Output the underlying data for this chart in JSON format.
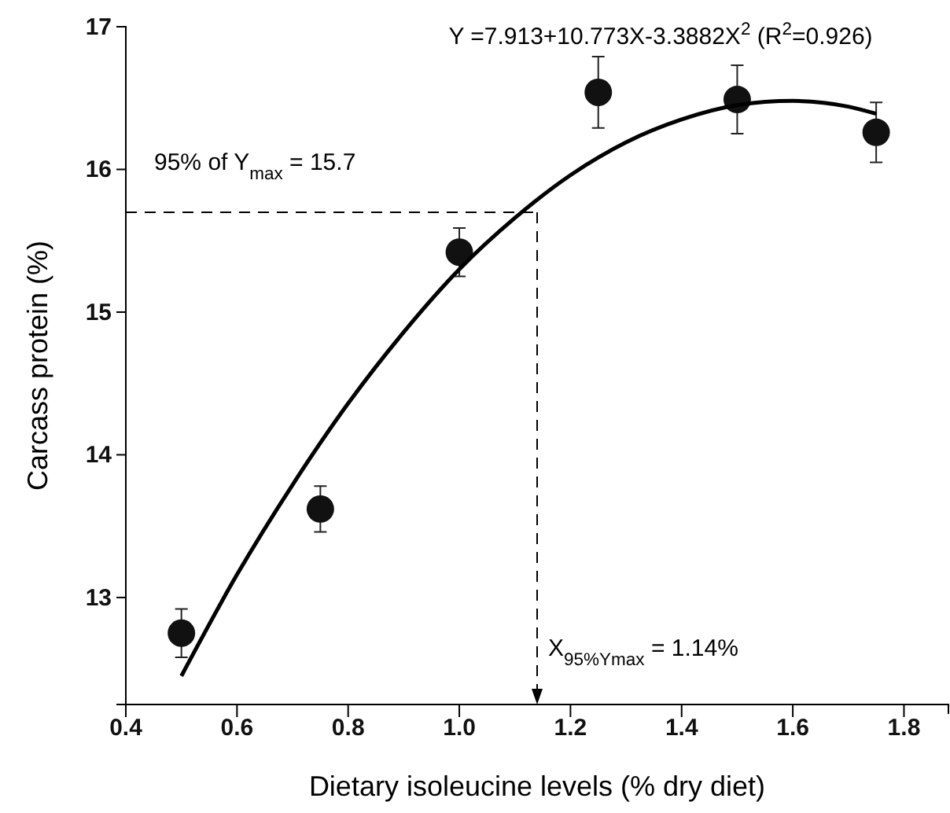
{
  "chart_data": {
    "type": "scatter",
    "xlabel": "Dietary isoleucine levels (% dry diet)",
    "ylabel": "Carcass protein (%)",
    "annotations": [
      "Y =7.913+10.773X-3.3882X$^{2}$ (R$^{2}$=0.926)"
    ],
    "xlim": [
      0.4,
      1.88
    ],
    "xticks": [
      {
        "value": 0.4,
        "label": "0.4"
      },
      {
        "value": 0.6,
        "label": "0.6"
      },
      {
        "value": 0.8,
        "label": "0.8"
      },
      {
        "value": 1.0,
        "label": "1.0"
      },
      {
        "value": 1.2,
        "label": "1.2"
      },
      {
        "value": 1.4,
        "label": "1.4"
      },
      {
        "value": 1.6,
        "label": "1.6"
      },
      {
        "value": 1.8,
        "label": "1.8"
      }
    ],
    "ylim": [
      12.25,
      17
    ],
    "yticks": [
      13,
      14,
      15,
      16,
      17
    ],
    "marker": "circle",
    "grid": false,
    "ref_lines": [
      {
        "axis": "y",
        "value": 15.7,
        "label": "95% of Y$_{max}$ = 15.7",
        "line_style": "dashed",
        "color": "#000000"
      },
      {
        "axis": "x",
        "value": 1.14,
        "label": "X$_{95%Ymax}$ = 1.14%",
        "line_style": "dashed",
        "color": "#000000"
      }
    ],
    "series": [
      {
        "color": "#111111",
        "x": [
          0.5,
          0.75,
          1.0,
          1.25,
          1.5,
          1.75
        ],
        "values": [
          12.75,
          13.62,
          15.42,
          16.54,
          16.49,
          16.26
        ],
        "errors": [
          0.17,
          0.16,
          0.17,
          0.25,
          0.24,
          0.21
        ]
      },
      {
        "type": "line",
        "color": "#000000",
        "line_style": "solid",
        "marker": "none",
        "x": [
          0.5,
          0.6,
          0.7,
          0.8,
          0.9,
          1.0,
          1.1,
          1.2,
          1.3,
          1.4,
          1.5,
          1.6,
          1.7,
          1.75
        ],
        "values": [
          12.45,
          13.16,
          13.79,
          14.36,
          14.86,
          15.3,
          15.66,
          15.96,
          16.19,
          16.35,
          16.45,
          16.48,
          16.44,
          16.39
        ]
      }
    ]
  }
}
